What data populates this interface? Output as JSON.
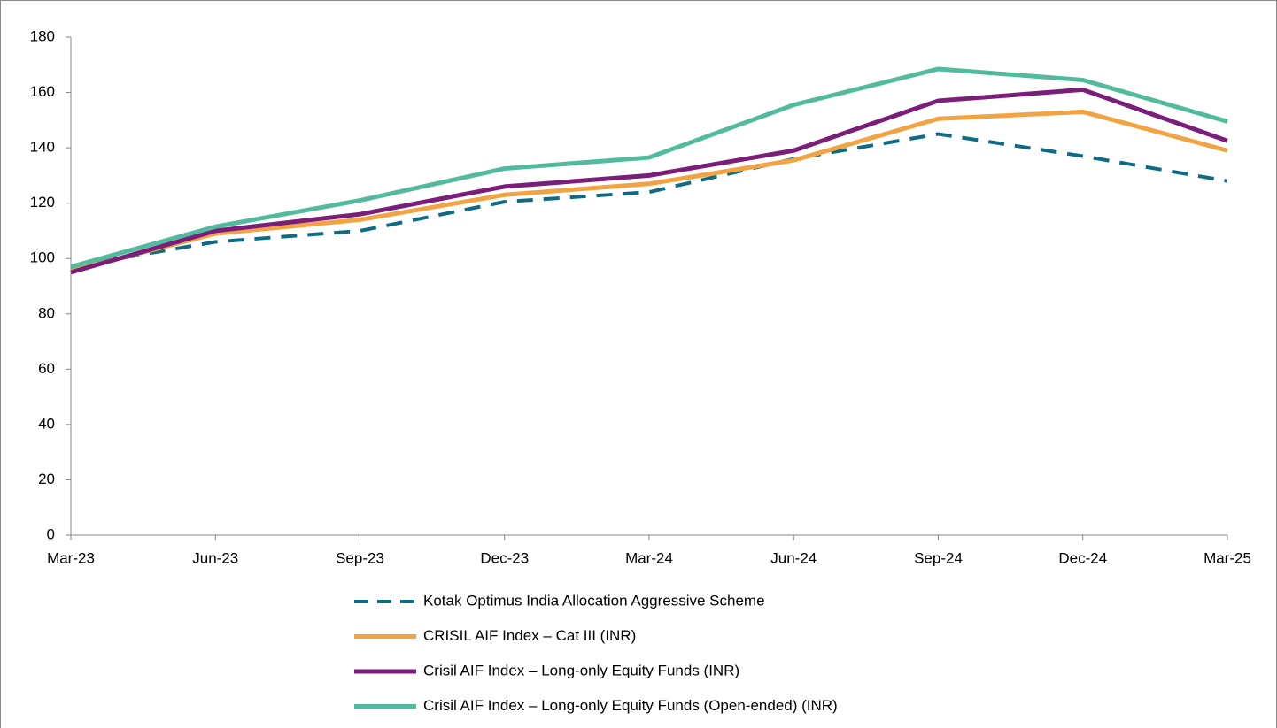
{
  "chart_data": {
    "type": "line",
    "categories": [
      "Mar-23",
      "Jun-23",
      "Sep-23",
      "Dec-23",
      "Mar-24",
      "Jun-24",
      "Sep-24",
      "Dec-24",
      "Mar-25"
    ],
    "series": [
      {
        "name": "Kotak Optimus India Allocation Aggressive Scheme",
        "color": "#0e6b84",
        "line_style": "dashed",
        "values": [
          97,
          106,
          110,
          120.5,
          124,
          136,
          145,
          137,
          128
        ]
      },
      {
        "name": "CRISIL AIF Index – Cat III (INR)",
        "color": "#f2a444",
        "line_style": "solid",
        "values": [
          95.5,
          109,
          114,
          123,
          127,
          135.5,
          150.5,
          153,
          139
        ]
      },
      {
        "name": "Crisil AIF Index – Long-only Equity Funds (INR)",
        "color": "#7b1e7a",
        "line_style": "solid",
        "values": [
          95,
          110,
          116,
          126,
          130,
          139,
          157,
          161,
          142.5
        ]
      },
      {
        "name": "Crisil AIF Index – Long-only Equity Funds (Open-ended) (INR)",
        "color": "#52bb9e",
        "line_style": "solid",
        "values": [
          97,
          111.5,
          121,
          132.5,
          136.5,
          155.5,
          168.5,
          164.5,
          149.5
        ]
      }
    ],
    "ylim": [
      0,
      180
    ],
    "yticks": [
      0,
      20,
      40,
      60,
      80,
      100,
      120,
      140,
      160,
      180
    ],
    "grid": false,
    "legend": "bottom"
  }
}
